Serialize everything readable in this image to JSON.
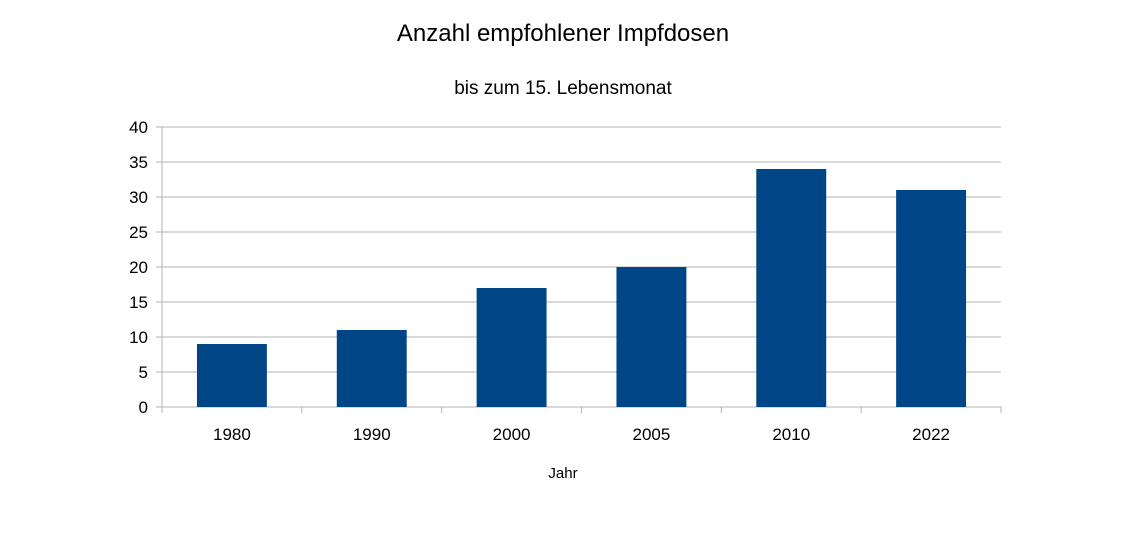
{
  "chart_data": {
    "type": "bar",
    "title": "Anzahl empfohlener Impfdosen",
    "subtitle": "bis zum 15. Lebensmonat",
    "xlabel": "Jahr",
    "ylabel": "",
    "categories": [
      "1980",
      "1990",
      "2000",
      "2005",
      "2010",
      "2022"
    ],
    "values": [
      9,
      11,
      17,
      20,
      34,
      31
    ],
    "ylim": [
      0,
      40
    ],
    "yticks": [
      0,
      5,
      10,
      15,
      20,
      25,
      30,
      35,
      40
    ],
    "grid": true,
    "legend": "none",
    "colors": {
      "bar": "#004586",
      "grid": "#b3b3b3",
      "axis": "#b3b3b3"
    }
  }
}
